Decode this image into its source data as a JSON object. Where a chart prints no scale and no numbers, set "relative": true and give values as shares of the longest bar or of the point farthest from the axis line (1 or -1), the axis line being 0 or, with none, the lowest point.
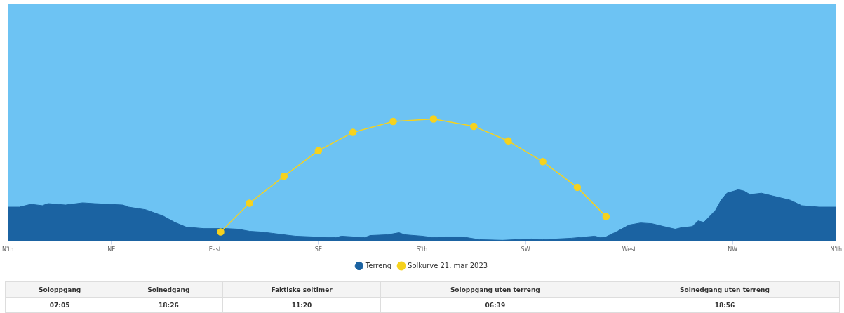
{
  "chart_data": {
    "type": "area",
    "relative": true,
    "grid": false,
    "legend": "bottom",
    "categories": [
      "N'th",
      null,
      null,
      null,
      null,
      null,
      null,
      null,
      null,
      null,
      null,
      null,
      null,
      null,
      null,
      null,
      null,
      null,
      "NE",
      null,
      null,
      null,
      null,
      null,
      null,
      null,
      null,
      null,
      null,
      null,
      null,
      null,
      null,
      null,
      null,
      null,
      "East",
      null,
      null,
      null,
      null,
      null,
      null,
      null,
      null,
      null,
      null,
      null,
      null,
      null,
      null,
      null,
      null,
      null,
      "SE",
      null,
      null,
      null,
      null,
      null,
      null,
      null,
      null,
      null,
      null,
      null,
      null,
      null,
      null,
      null,
      null,
      null,
      "S'th",
      null,
      null,
      null,
      null,
      null,
      null,
      null,
      null,
      null,
      null,
      null,
      null,
      null,
      null,
      null,
      null,
      null,
      "SW",
      null,
      null,
      null,
      null,
      null,
      null,
      null,
      null,
      null,
      null,
      null,
      null,
      null,
      null,
      null,
      null,
      null,
      "West",
      null,
      null,
      null,
      null,
      null,
      null,
      null,
      null,
      null,
      null,
      null,
      null,
      null,
      null,
      null,
      null,
      null,
      "NW",
      null,
      null,
      null,
      null,
      null,
      null,
      null,
      null,
      null,
      null,
      null,
      null,
      null,
      null,
      null,
      null,
      null,
      "N'th"
    ],
    "series": [
      {
        "name": "Terreng",
        "type": "area",
        "color": "#1b63a2",
        "values": [
          0.278,
          null,
          0.278,
          null,
          0.301,
          null,
          0.29,
          0.307,
          null,
          null,
          0.295,
          null,
          null,
          0.313,
          null,
          0.307,
          null,
          null,
          null,
          null,
          0.295,
          0.278,
          null,
          null,
          0.256,
          null,
          null,
          0.205,
          null,
          0.153,
          null,
          0.114,
          null,
          null,
          0.102,
          null,
          0.102,
          null,
          0.102,
          null,
          0.097,
          null,
          0.08,
          null,
          0.074,
          null,
          0.063,
          0.057,
          null,
          0.045,
          0.04,
          null,
          null,
          0.034,
          null,
          null,
          null,
          0.028,
          0.04,
          null,
          null,
          null,
          0.028,
          0.045,
          null,
          null,
          0.051,
          null,
          0.068,
          0.051,
          null,
          null,
          0.04,
          null,
          0.028,
          null,
          0.034,
          null,
          null,
          0.034,
          null,
          null,
          0.011,
          null,
          null,
          null,
          0.006,
          null,
          null,
          null,
          null,
          0.017,
          null,
          0.011,
          null,
          null,
          null,
          null,
          0.023,
          null,
          null,
          null,
          0.04,
          0.028,
          0.034,
          null,
          0.08,
          null,
          0.131,
          null,
          0.148,
          null,
          0.142,
          null,
          0.119,
          null,
          0.097,
          0.108,
          null,
          0.119,
          0.165,
          0.153,
          null,
          0.25,
          0.335,
          0.392,
          null,
          0.42,
          0.409,
          0.381,
          null,
          0.392,
          null,
          0.369,
          null,
          null,
          0.335,
          null,
          0.29,
          null,
          null,
          0.278,
          null,
          null,
          0.278
        ]
      },
      {
        "name": "Solkurve 21. mar 2023",
        "type": "line",
        "marker": "circle",
        "color": "#f6d21e",
        "values": [
          null,
          null,
          null,
          null,
          null,
          null,
          null,
          null,
          null,
          null,
          null,
          null,
          null,
          null,
          null,
          null,
          null,
          null,
          null,
          null,
          null,
          null,
          null,
          null,
          null,
          null,
          null,
          null,
          null,
          null,
          null,
          null,
          null,
          null,
          null,
          null,
          null,
          0.074,
          null,
          null,
          null,
          null,
          0.31,
          null,
          null,
          null,
          null,
          null,
          0.53,
          null,
          null,
          null,
          null,
          null,
          0.74,
          null,
          null,
          null,
          null,
          null,
          0.89,
          null,
          null,
          null,
          null,
          null,
          null,
          0.98,
          null,
          null,
          null,
          null,
          null,
          null,
          1,
          null,
          null,
          null,
          null,
          null,
          null,
          0.94,
          null,
          null,
          null,
          null,
          null,
          0.82,
          null,
          null,
          null,
          null,
          null,
          0.65,
          null,
          null,
          null,
          null,
          null,
          0.44,
          null,
          null,
          null,
          null,
          0.2,
          null,
          null,
          null,
          null,
          null,
          null,
          null,
          null,
          null,
          null,
          null,
          null,
          null,
          null,
          null,
          null,
          null,
          null,
          null,
          null,
          null,
          null,
          null,
          null,
          null,
          null,
          null,
          null,
          null,
          null,
          null,
          null,
          null,
          null,
          null,
          null,
          null,
          null,
          null,
          null
        ]
      }
    ],
    "annotations": [
      "Soloppgang",
      "Solnedgang",
      "Faktiske soltimer",
      "Soloppgang uten terreng",
      "Solnedgang uten terreng",
      "07:05",
      "18:26",
      "11:20",
      "06:39",
      "18:56"
    ]
  }
}
